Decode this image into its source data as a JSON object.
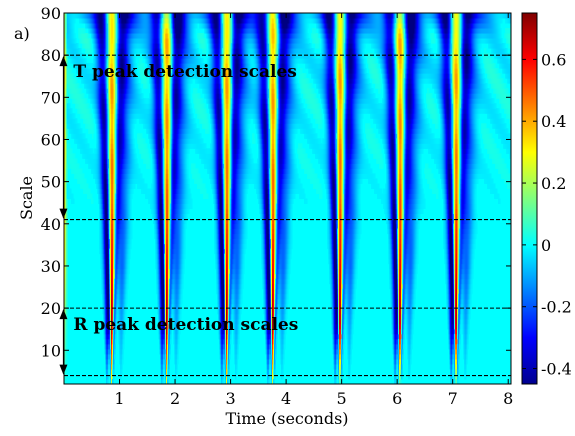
{
  "chart_data": {
    "type": "heatmap",
    "panel_label": "a)",
    "title": "",
    "xlabel": "Time (seconds)",
    "ylabel": "Scale",
    "xlim": [
      0.0,
      8.05
    ],
    "ylim": [
      2,
      90
    ],
    "x_ticks": [
      1,
      2,
      3,
      4,
      5,
      6,
      7,
      8
    ],
    "y_ticks": [
      10,
      20,
      30,
      40,
      50,
      60,
      70,
      80,
      90
    ],
    "colorbar": {
      "colormap": "jet",
      "range": [
        -0.45,
        0.75
      ],
      "ticks": [
        -0.4,
        -0.2,
        0,
        0.2,
        0.4,
        0.6
      ],
      "tick_labels": [
        "-0.4",
        "-0.2",
        "0",
        "0.2",
        "0.4",
        "0.6"
      ]
    },
    "beats": [
      {
        "time": 0.86,
        "value_at_peak": 0.75
      },
      {
        "time": 1.85,
        "value_at_peak": 0.75
      },
      {
        "time": 2.93,
        "value_at_peak": 0.75
      },
      {
        "time": 3.76,
        "value_at_peak": 0.75
      },
      {
        "time": 4.97,
        "value_at_peak": 0.75
      },
      {
        "time": 6.05,
        "value_at_peak": 0.75
      },
      {
        "time": 7.06,
        "value_at_peak": 0.75
      }
    ],
    "reference_lines": [
      {
        "scale": 80,
        "style": "dashed"
      },
      {
        "scale": 41,
        "style": "dashed"
      },
      {
        "scale": 20,
        "style": "dashed"
      },
      {
        "scale": 4,
        "style": "dashed"
      }
    ],
    "annotations": [
      {
        "text": "T peak detection scales",
        "scale_from": 80,
        "scale_to": 41,
        "x": 0.35
      },
      {
        "text": "R peak detection scales",
        "scale_from": 20,
        "scale_to": 4,
        "x": 0.35
      }
    ],
    "grid": false,
    "legend": "none"
  }
}
